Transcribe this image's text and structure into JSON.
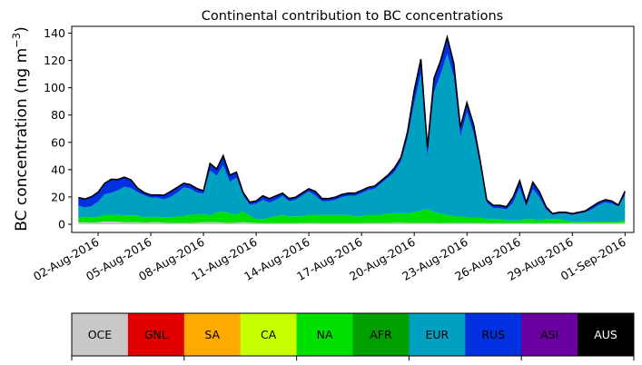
{
  "chart_data": {
    "type": "area",
    "title": "Continental contribution to BC concentrations",
    "ylabel": "BC concentration (ng m",
    "ylabel_sup": "−3",
    "ylabel_close": ")",
    "xlabel": "",
    "ylim": [
      -6,
      145
    ],
    "xlim": [
      "2016-07-31T12:00",
      "2016-09-01T12:00"
    ],
    "yticks": [
      0,
      20,
      40,
      60,
      80,
      100,
      120,
      140
    ],
    "xticks": [
      "2016-08-02",
      "2016-08-05",
      "2016-08-08",
      "2016-08-11",
      "2016-08-14",
      "2016-08-17",
      "2016-08-20",
      "2016-08-23",
      "2016-08-26",
      "2016-08-29",
      "2016-09-01"
    ],
    "xtick_labels": [
      "02-Aug-2016",
      "05-Aug-2016",
      "08-Aug-2016",
      "11-Aug-2016",
      "14-Aug-2016",
      "17-Aug-2016",
      "20-Aug-2016",
      "23-Aug-2016",
      "26-Aug-2016",
      "29-Aug-2016",
      "01-Sep-2016"
    ],
    "grid": false,
    "x": [
      "2016-07-31T21:00",
      "2016-08-01T06:00",
      "2016-08-01T15:00",
      "2016-08-02T00:00",
      "2016-08-02T09:00",
      "2016-08-02T18:00",
      "2016-08-03T03:00",
      "2016-08-03T12:00",
      "2016-08-03T21:00",
      "2016-08-04T06:00",
      "2016-08-04T15:00",
      "2016-08-05T00:00",
      "2016-08-05T09:00",
      "2016-08-05T18:00",
      "2016-08-06T03:00",
      "2016-08-06T12:00",
      "2016-08-06T21:00",
      "2016-08-07T06:00",
      "2016-08-07T15:00",
      "2016-08-08T00:00",
      "2016-08-08T09:00",
      "2016-08-08T18:00",
      "2016-08-09T03:00",
      "2016-08-09T12:00",
      "2016-08-09T21:00",
      "2016-08-10T06:00",
      "2016-08-10T15:00",
      "2016-08-11T00:00",
      "2016-08-11T09:00",
      "2016-08-11T18:00",
      "2016-08-12T03:00",
      "2016-08-12T12:00",
      "2016-08-12T21:00",
      "2016-08-13T06:00",
      "2016-08-13T15:00",
      "2016-08-14T00:00",
      "2016-08-14T09:00",
      "2016-08-14T18:00",
      "2016-08-15T03:00",
      "2016-08-15T12:00",
      "2016-08-15T21:00",
      "2016-08-16T06:00",
      "2016-08-16T15:00",
      "2016-08-17T00:00",
      "2016-08-17T09:00",
      "2016-08-17T18:00",
      "2016-08-18T03:00",
      "2016-08-18T12:00",
      "2016-08-18T21:00",
      "2016-08-19T06:00",
      "2016-08-19T15:00",
      "2016-08-20T00:00",
      "2016-08-20T09:00",
      "2016-08-20T18:00",
      "2016-08-21T03:00",
      "2016-08-21T12:00",
      "2016-08-21T21:00",
      "2016-08-22T06:00",
      "2016-08-22T15:00",
      "2016-08-23T00:00",
      "2016-08-23T09:00",
      "2016-08-23T18:00",
      "2016-08-24T03:00",
      "2016-08-24T12:00",
      "2016-08-24T21:00",
      "2016-08-25T06:00",
      "2016-08-25T15:00",
      "2016-08-26T00:00",
      "2016-08-26T09:00",
      "2016-08-26T18:00",
      "2016-08-27T03:00",
      "2016-08-27T12:00",
      "2016-08-27T21:00",
      "2016-08-28T06:00",
      "2016-08-28T15:00",
      "2016-08-29T00:00",
      "2016-08-29T09:00",
      "2016-08-29T18:00",
      "2016-08-30T03:00",
      "2016-08-30T12:00",
      "2016-08-30T21:00",
      "2016-08-31T06:00",
      "2016-08-31T15:00",
      "2016-09-01T00:00"
    ],
    "series": [
      {
        "name": "OCE",
        "color": "#c8c8c8",
        "values": [
          1.5,
          1.5,
          1.2,
          1.5,
          2,
          2,
          1.8,
          1.5,
          1.5,
          1.5,
          1.2,
          1.5,
          1.5,
          1.2,
          1,
          1,
          1,
          1,
          1.2,
          1.5,
          1.5,
          1.5,
          1.2,
          1,
          1.2,
          1.5,
          1.2,
          1,
          0.8,
          0.8,
          0.8,
          0.8,
          0.8,
          0.8,
          1,
          1,
          1,
          0.8,
          0.8,
          0.8,
          0.8,
          0.8,
          0.8,
          0.8,
          1,
          1,
          1,
          1,
          1.2,
          1.2,
          1,
          1,
          1,
          1,
          1,
          0.8,
          1,
          1,
          1,
          1,
          1,
          1,
          0.8,
          0.8,
          0.8,
          0.8,
          0.8,
          0.8,
          0.8,
          0.8,
          0.8,
          0.8,
          0.8,
          0.8,
          0.8,
          0.8,
          0.8,
          0.8,
          1,
          1,
          1,
          1,
          1,
          1.2
        ]
      },
      {
        "name": "GNL",
        "color": "#e00000",
        "values": [
          0,
          0,
          0,
          0,
          0,
          0,
          0,
          0,
          0,
          0,
          0,
          0,
          0,
          0,
          0,
          0,
          0,
          0,
          0,
          0,
          0,
          0,
          0,
          0,
          0,
          0,
          0,
          0,
          0,
          0,
          0,
          0,
          0,
          0,
          0,
          0,
          0,
          0,
          0,
          0,
          0,
          0,
          0,
          0,
          0,
          0,
          0,
          0,
          0,
          0,
          0,
          0,
          0,
          0,
          0,
          0,
          0,
          0,
          0,
          0,
          0,
          0,
          0,
          0,
          0,
          0,
          0,
          0,
          0,
          0,
          0,
          0,
          0,
          0,
          0,
          0,
          0,
          0,
          0,
          0,
          0,
          0,
          0,
          0
        ]
      },
      {
        "name": "SA",
        "color": "#ffaa00",
        "values": [
          0,
          0,
          0,
          0,
          0,
          0,
          0,
          0,
          0,
          0,
          0,
          0,
          0,
          0,
          0,
          0,
          0,
          0,
          0,
          0,
          0,
          0,
          0,
          0,
          0,
          0,
          0,
          0,
          0,
          0,
          0,
          0,
          0,
          0,
          0,
          0,
          0,
          0,
          0,
          0,
          0,
          0,
          0,
          0,
          0,
          0,
          0,
          0,
          0,
          0,
          0,
          0,
          0,
          0,
          0,
          0,
          0,
          0,
          0,
          0,
          0,
          0,
          0,
          0,
          0,
          0,
          0,
          0,
          0,
          0,
          0,
          0,
          0,
          0,
          0,
          0,
          0,
          0,
          0,
          0,
          0,
          0,
          0,
          0
        ]
      },
      {
        "name": "CA",
        "color": "#c8ff00",
        "values": [
          0,
          0,
          0,
          0,
          0,
          0,
          0,
          0,
          0,
          0,
          0,
          0,
          0,
          0,
          0,
          0,
          0,
          0,
          0,
          0,
          0,
          0,
          0,
          0,
          0,
          0,
          0,
          0,
          0,
          0,
          0,
          0,
          0,
          0,
          0,
          0,
          0,
          0,
          0,
          0,
          0,
          0,
          0,
          0,
          0,
          0,
          0,
          0,
          0,
          0,
          0,
          0,
          0,
          0,
          0,
          0,
          0,
          0,
          0,
          0,
          0,
          0,
          0,
          0,
          0,
          0,
          0,
          0,
          0,
          0,
          0,
          0,
          0,
          0,
          0,
          0,
          0,
          0,
          0,
          0,
          0,
          0,
          0,
          0
        ]
      },
      {
        "name": "NA",
        "color": "#00e000",
        "values": [
          3,
          4,
          4,
          4,
          5,
          5,
          5,
          5,
          5,
          5,
          4,
          4,
          4,
          4,
          4,
          5,
          5,
          6,
          6,
          6,
          5,
          7,
          8,
          7,
          6,
          8,
          5,
          3,
          3,
          4,
          5,
          6,
          5,
          5,
          5,
          6,
          6,
          6,
          6,
          6,
          6,
          6,
          5,
          5,
          6,
          6,
          6,
          7,
          7,
          7,
          7,
          8,
          9,
          10,
          8,
          7,
          6,
          5,
          5,
          4,
          4,
          4,
          3,
          3,
          3,
          2,
          2,
          2,
          3,
          3,
          2,
          3,
          3,
          3,
          2,
          1,
          1,
          1,
          1,
          1,
          1,
          1,
          1,
          2
        ]
      },
      {
        "name": "AFR",
        "color": "#009f00",
        "values": [
          0,
          0,
          0,
          0,
          0,
          0,
          0,
          0,
          0,
          0,
          0,
          0,
          0,
          0,
          0,
          0,
          0,
          0,
          0,
          0,
          0,
          0,
          0,
          0,
          0,
          0,
          0,
          0,
          0,
          0,
          0,
          0,
          0,
          0,
          0,
          0,
          0,
          0,
          0,
          0,
          0,
          0,
          0,
          0,
          0,
          0,
          0,
          0,
          0,
          0,
          0,
          0,
          0,
          0,
          0,
          0,
          0,
          0,
          0,
          0,
          0,
          0,
          0,
          0,
          0,
          0,
          0,
          0,
          0,
          0,
          0,
          0,
          0,
          0,
          0,
          0,
          0,
          0,
          0,
          0,
          0,
          0,
          0,
          0
        ]
      },
      {
        "name": "EUR",
        "color": "#00a0c0",
        "values": [
          9,
          7,
          8,
          11,
          15,
          16,
          18,
          21,
          20,
          17,
          16,
          14,
          14,
          13,
          15,
          17,
          21,
          19,
          16,
          15,
          33,
          27,
          34,
          23,
          27,
          12,
          8,
          11,
          14,
          11,
          12,
          14,
          11,
          12,
          15,
          17,
          14,
          10,
          10,
          11,
          13,
          14,
          15,
          17,
          18,
          19,
          23,
          26,
          30,
          38,
          55,
          80,
          100,
          38,
          88,
          102,
          118,
          102,
          58,
          77,
          62,
          38,
          12,
          8,
          8,
          8,
          13,
          24,
          9,
          22,
          17,
          7,
          3,
          4,
          5,
          5,
          6,
          7,
          9,
          12,
          14,
          13,
          11,
          18
        ]
      },
      {
        "name": "RUS",
        "color": "#0030e0",
        "values": [
          6,
          6,
          7,
          7,
          8,
          10,
          8,
          7,
          6,
          3,
          2,
          2,
          2,
          3,
          4,
          4,
          3,
          3,
          3,
          2,
          5,
          5,
          7,
          5,
          4,
          2,
          2,
          2,
          3,
          3,
          3,
          2,
          2,
          2,
          2,
          2,
          3,
          2,
          2,
          2,
          2,
          2,
          2,
          2,
          2,
          2,
          2,
          2,
          3,
          3,
          5,
          9,
          11,
          7,
          10,
          10,
          12,
          10,
          7,
          7,
          6,
          4,
          2,
          2,
          2,
          2,
          4,
          5,
          3,
          5,
          4,
          2,
          1,
          1,
          1,
          1,
          1,
          1,
          2,
          2,
          2,
          2,
          1,
          3
        ]
      },
      {
        "name": "ASI",
        "color": "#6a00a0",
        "values": [
          0,
          0,
          0,
          0,
          0,
          0,
          0,
          0,
          0,
          0,
          0,
          0,
          0,
          0,
          0,
          0,
          0,
          0,
          0,
          0,
          0,
          0,
          0,
          0,
          0,
          0,
          0,
          0,
          0,
          0,
          0,
          0,
          0,
          0,
          0,
          0,
          0,
          0,
          0,
          0,
          0,
          0,
          0,
          0,
          0,
          0,
          0,
          0,
          0,
          0,
          0,
          0,
          0,
          0,
          0,
          0,
          0,
          0,
          0,
          0,
          0,
          0,
          0,
          0,
          0,
          0,
          0,
          0,
          0,
          0,
          0,
          0,
          0,
          0,
          0,
          0,
          0,
          0,
          0,
          0,
          0,
          0,
          0,
          0
        ]
      },
      {
        "name": "AUS",
        "color": "#000000",
        "values": [
          0,
          0,
          0,
          0,
          0,
          0,
          0,
          0,
          0,
          0,
          0,
          0,
          0,
          0,
          0,
          0,
          0,
          0,
          0,
          0,
          0,
          0,
          0,
          0,
          0,
          0,
          0,
          0,
          0,
          0,
          0,
          0,
          0,
          0,
          0,
          0,
          0,
          0,
          0,
          0,
          0,
          0,
          0,
          0,
          0,
          0,
          0,
          0,
          0,
          0,
          0,
          0,
          0,
          0,
          0,
          0,
          0,
          0,
          0,
          0,
          0,
          0,
          0,
          0,
          0,
          0,
          0,
          0,
          0,
          0,
          0,
          0,
          0,
          0,
          0,
          0,
          0,
          0,
          0,
          0,
          0,
          0,
          0,
          0
        ]
      }
    ],
    "total_line_color": "#000000",
    "legend_placement": "bottom colorbar",
    "legend": [
      {
        "label": "OCE",
        "color": "#c8c8c8",
        "text_color": "#000000"
      },
      {
        "label": "GNL",
        "color": "#e00000",
        "text_color": "#000000"
      },
      {
        "label": "SA",
        "color": "#ffaa00",
        "text_color": "#000000"
      },
      {
        "label": "CA",
        "color": "#c8ff00",
        "text_color": "#000000"
      },
      {
        "label": "NA",
        "color": "#00e000",
        "text_color": "#000000"
      },
      {
        "label": "AFR",
        "color": "#009f00",
        "text_color": "#000000"
      },
      {
        "label": "EUR",
        "color": "#00a0c0",
        "text_color": "#000000"
      },
      {
        "label": "RUS",
        "color": "#0030e0",
        "text_color": "#000000"
      },
      {
        "label": "ASI",
        "color": "#6a00a0",
        "text_color": "#000000"
      },
      {
        "label": "AUS",
        "color": "#000000",
        "text_color": "#ffffff"
      }
    ]
  }
}
